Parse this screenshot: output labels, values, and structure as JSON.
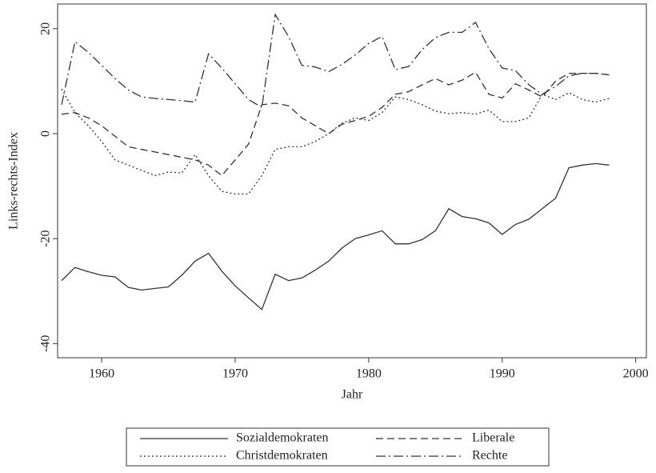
{
  "chart_data": {
    "type": "line",
    "x_label": "Jahr",
    "y_label": "Links-rechts-Index",
    "x": [
      1957,
      1958,
      1959,
      1960,
      1961,
      1962,
      1963,
      1964,
      1965,
      1966,
      1967,
      1968,
      1969,
      1970,
      1971,
      1972,
      1973,
      1974,
      1975,
      1976,
      1977,
      1978,
      1979,
      1980,
      1981,
      1982,
      1983,
      1984,
      1985,
      1986,
      1987,
      1988,
      1989,
      1990,
      1991,
      1992,
      1993,
      1994,
      1995,
      1996,
      1997,
      1998
    ],
    "series": [
      {
        "name": "Sozialdemokraten",
        "color": "#333333",
        "dash": "solid",
        "values": [
          -28,
          -25.5,
          -26.3,
          -27,
          -27.3,
          -29.3,
          -29.8,
          -29.5,
          -29.2,
          -27,
          -24.3,
          -22.8,
          -26.2,
          -29,
          -31.3,
          -33.5,
          -26.8,
          -28,
          -27.5,
          -26,
          -24.3,
          -21.8,
          -20,
          -19.3,
          -18.5,
          -21,
          -21,
          -20.2,
          -18.5,
          -14.3,
          -15.8,
          -16.2,
          -17,
          -19.2,
          -17.3,
          -16.3,
          -14.3,
          -12.3,
          -6.5,
          -6,
          -5.7,
          -6
        ]
      },
      {
        "name": "Liberale",
        "color": "#333333",
        "dash": "dashed",
        "values": [
          3.7,
          4,
          3,
          1.5,
          -0.5,
          -2.5,
          -3,
          -3.5,
          -4,
          -4.5,
          -5,
          -6,
          -8,
          -5,
          -2,
          5.5,
          5.8,
          5.3,
          3,
          1.5,
          0,
          1.8,
          2.5,
          3.3,
          5,
          7.5,
          8,
          9.3,
          10.5,
          9.3,
          10.2,
          11.7,
          7.5,
          6.8,
          9.5,
          8.3,
          7,
          10,
          11.5,
          11.5,
          11.5,
          11.2
        ]
      },
      {
        "name": "Christdemokraten",
        "color": "#333333",
        "dash": "dotted",
        "values": [
          8.5,
          4,
          1.5,
          -1.5,
          -5,
          -6,
          -7,
          -8,
          -7.3,
          -7.5,
          -4,
          -8,
          -11,
          -11.5,
          -11.5,
          -8,
          -3,
          -2.5,
          -2.5,
          -1.5,
          0,
          2,
          3,
          2.5,
          4,
          7,
          6.5,
          5.5,
          4.3,
          3.8,
          4,
          3.7,
          4.5,
          2.3,
          2.3,
          3,
          7.5,
          6.5,
          7.8,
          6.5,
          6,
          6.7
        ]
      },
      {
        "name": "Rechte",
        "color": "#333333",
        "dash": "dashdot",
        "values": [
          5.5,
          17.5,
          15.5,
          13,
          10.5,
          8.3,
          7,
          6.7,
          6.5,
          6.3,
          6,
          15.2,
          12.5,
          9.5,
          6.5,
          5,
          22.7,
          18.5,
          13,
          12.7,
          11.8,
          13.2,
          15,
          17.2,
          18.5,
          12.2,
          12.8,
          16,
          18.3,
          19.3,
          19.3,
          21.2,
          16.2,
          12.5,
          12,
          9.3,
          7.5,
          9,
          11,
          11.5,
          11.5,
          11.2
        ]
      }
    ],
    "xlim": [
      1956.7,
      2000.8
    ],
    "xticks": [
      1960,
      1970,
      1980,
      1990,
      2000
    ],
    "ylim": [
      -42.7,
      24.7
    ],
    "yticks": [
      -40,
      -20,
      0,
      20
    ],
    "legend": "bottom"
  }
}
